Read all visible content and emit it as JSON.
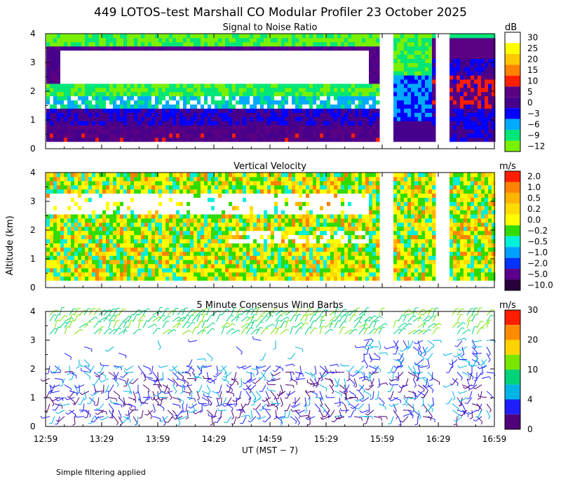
{
  "title": "449 LOTOS–test Marshall CO Modular Profiler 23 October 2025",
  "footnote": "Simple filtering applied",
  "shared_ylabel": "Altitude (km)",
  "chart_data": [
    {
      "type": "heatmap",
      "title": "Signal to Noise Ratio",
      "ylabel": "Altitude (km)",
      "ylim": [
        0,
        4
      ],
      "yticks": [
        "0",
        "1",
        "2",
        "3",
        "4"
      ],
      "x_tick_labels": [
        "12:59",
        "13:29",
        "13:59",
        "14:29",
        "14:59",
        "15:29",
        "15:59",
        "16:29",
        "16:59"
      ],
      "data_gaps_utc": [
        [
          "15:59",
          "16:04"
        ],
        [
          "16:29",
          "16:34"
        ]
      ],
      "colorbar": {
        "unit": "dB",
        "levels": [
          "30",
          "25",
          "20",
          "15",
          "10",
          "5",
          "0",
          "−3",
          "−6",
          "−9",
          "−12"
        ],
        "colors": [
          "#ffffff",
          "#ffff00",
          "#ffc800",
          "#ff8200",
          "#ff1e00",
          "#5a0082",
          "#46008c",
          "#0000ff",
          "#00aaff",
          "#00e678",
          "#78f000"
        ]
      }
    },
    {
      "type": "heatmap",
      "title": "Vertical Velocity",
      "ylabel": "Altitude (km)",
      "ylim": [
        0,
        4
      ],
      "yticks": [
        "0",
        "1",
        "2",
        "3",
        "4"
      ],
      "x_tick_labels": [
        "12:59",
        "13:29",
        "13:59",
        "14:29",
        "14:59",
        "15:29",
        "15:59",
        "16:29",
        "16:59"
      ],
      "colorbar": {
        "unit": "m/s",
        "levels": [
          "2.0",
          "1.0",
          "0.5",
          "0.2",
          "0.0",
          "−0.2",
          "−0.5",
          "−1.0",
          "−2.0",
          "−5.0",
          "−10.0"
        ],
        "colors": [
          "#ff1e00",
          "#ff8200",
          "#ffb400",
          "#ffdc00",
          "#ffff00",
          "#32dc00",
          "#00f0dc",
          "#00a0ff",
          "#0032ff",
          "#5a008c",
          "#28003c"
        ]
      }
    },
    {
      "type": "scatter",
      "title": "5 Minute Consensus Wind Barbs",
      "ylabel": "Altitude (km)",
      "xlabel": "UT  (MST − 7)",
      "ylim": [
        0,
        4
      ],
      "yticks": [
        "0",
        "1",
        "2",
        "3",
        "4"
      ],
      "x_tick_labels": [
        "12:59",
        "13:29",
        "13:59",
        "14:29",
        "14:59",
        "15:29",
        "15:59",
        "16:29",
        "16:59"
      ],
      "colorbar": {
        "unit": "m/s",
        "levels": [
          "30",
          "20",
          "10",
          "4",
          "0"
        ],
        "colors": [
          "#ff1e00",
          "#ff8c00",
          "#ffd200",
          "#78e600",
          "#00d278",
          "#00b4e6",
          "#1e1eff",
          "#500078"
        ]
      }
    }
  ]
}
